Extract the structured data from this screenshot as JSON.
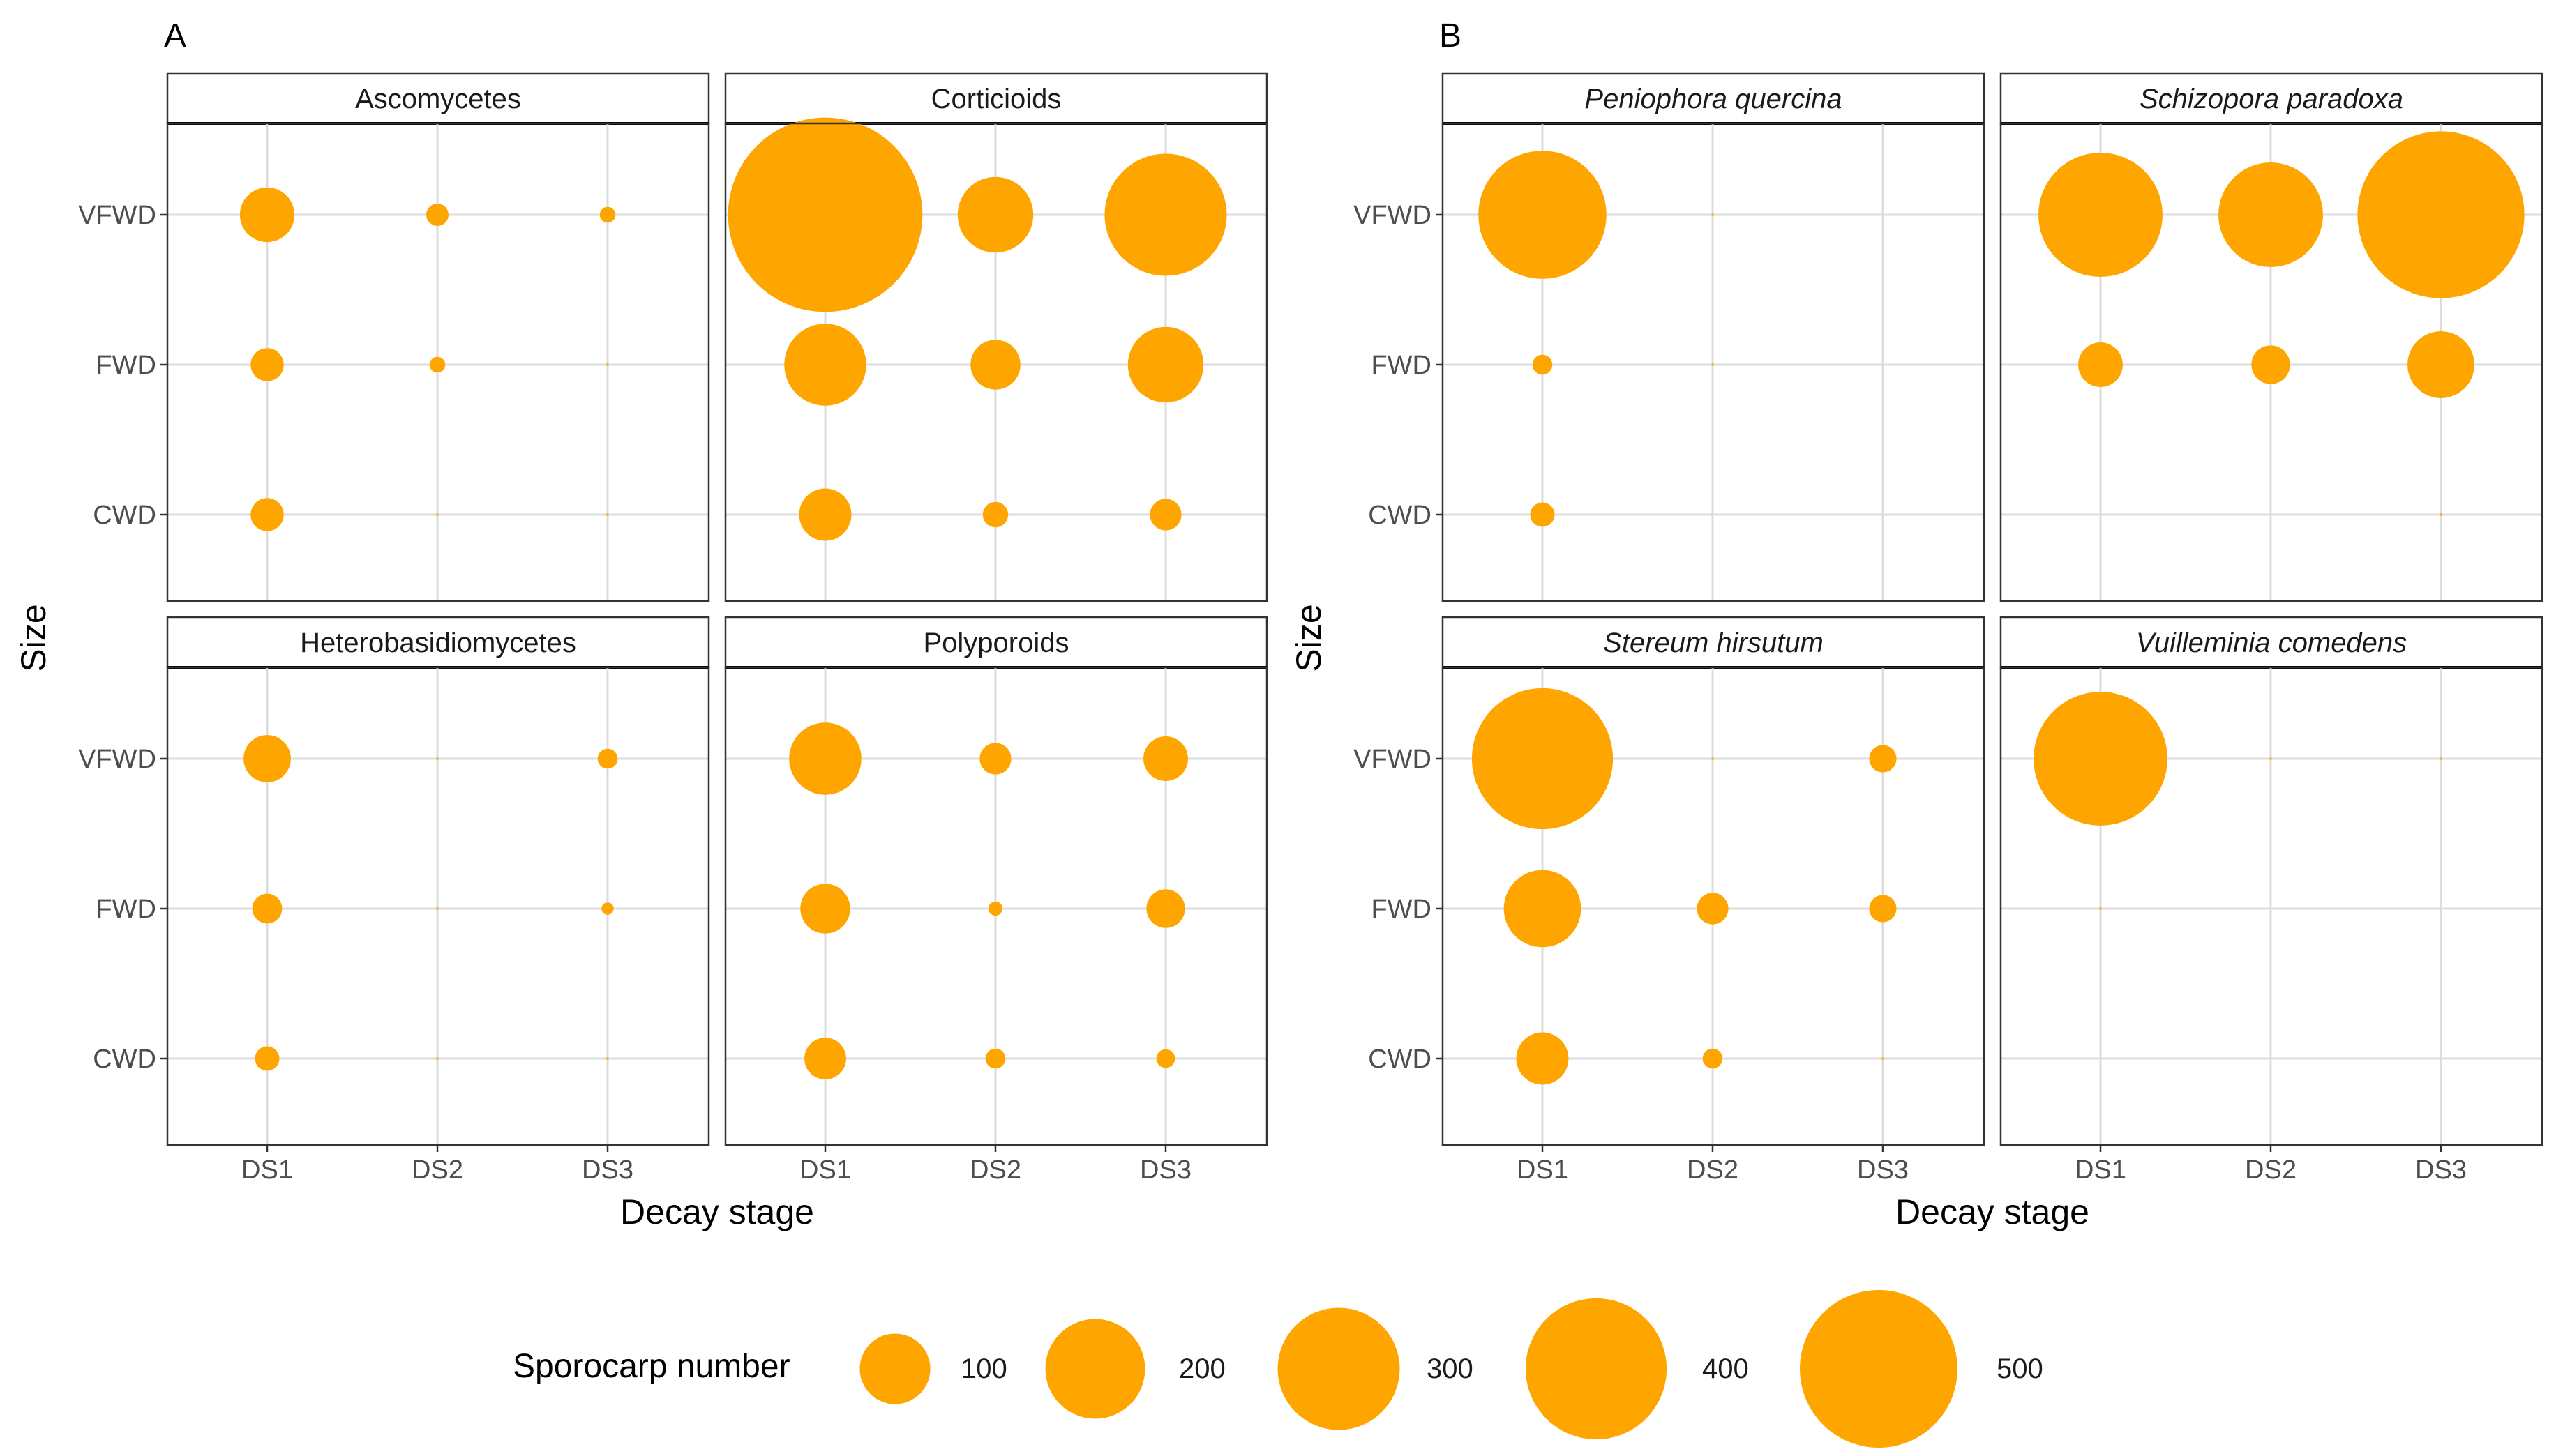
{
  "chart_data": [
    {
      "id": "A",
      "type": "scatter",
      "subtype": "facetted bubble chart",
      "panel_label": "A",
      "xlabel": "Decay stage",
      "ylabel": "Size",
      "x_categories": [
        "DS1",
        "DS2",
        "DS3"
      ],
      "y_categories": [
        "CWD",
        "FWD",
        "VFWD"
      ],
      "facets": [
        {
          "title": "Ascomycetes",
          "italic": false,
          "points": [
            {
              "x": "DS1",
              "y": "VFWD",
              "value": 60
            },
            {
              "x": "DS2",
              "y": "VFWD",
              "value": 10
            },
            {
              "x": "DS3",
              "y": "VFWD",
              "value": 5
            },
            {
              "x": "DS1",
              "y": "FWD",
              "value": 22
            },
            {
              "x": "DS2",
              "y": "FWD",
              "value": 5
            },
            {
              "x": "DS3",
              "y": "FWD",
              "value": 0.1
            },
            {
              "x": "DS1",
              "y": "CWD",
              "value": 22
            },
            {
              "x": "DS2",
              "y": "CWD",
              "value": 0.1
            },
            {
              "x": "DS3",
              "y": "CWD",
              "value": 0.1
            }
          ]
        },
        {
          "title": "Corticioids",
          "italic": false,
          "points": [
            {
              "x": "DS1",
              "y": "VFWD",
              "value": 760
            },
            {
              "x": "DS2",
              "y": "VFWD",
              "value": 115
            },
            {
              "x": "DS3",
              "y": "VFWD",
              "value": 300
            },
            {
              "x": "DS1",
              "y": "FWD",
              "value": 135
            },
            {
              "x": "DS2",
              "y": "FWD",
              "value": 50
            },
            {
              "x": "DS3",
              "y": "FWD",
              "value": 115
            },
            {
              "x": "DS1",
              "y": "CWD",
              "value": 55
            },
            {
              "x": "DS2",
              "y": "CWD",
              "value": 13
            },
            {
              "x": "DS3",
              "y": "CWD",
              "value": 20
            }
          ]
        },
        {
          "title": "Heterobasidiomycetes",
          "italic": false,
          "points": [
            {
              "x": "DS1",
              "y": "VFWD",
              "value": 45
            },
            {
              "x": "DS2",
              "y": "VFWD",
              "value": 0.1
            },
            {
              "x": "DS3",
              "y": "VFWD",
              "value": 8
            },
            {
              "x": "DS1",
              "y": "FWD",
              "value": 18
            },
            {
              "x": "DS2",
              "y": "FWD",
              "value": 0.1
            },
            {
              "x": "DS3",
              "y": "FWD",
              "value": 3
            },
            {
              "x": "DS1",
              "y": "CWD",
              "value": 12
            },
            {
              "x": "DS2",
              "y": "CWD",
              "value": 0.1
            },
            {
              "x": "DS3",
              "y": "CWD",
              "value": 0.1
            }
          ]
        },
        {
          "title": "Polyporoids",
          "italic": false,
          "points": [
            {
              "x": "DS1",
              "y": "VFWD",
              "value": 105
            },
            {
              "x": "DS2",
              "y": "VFWD",
              "value": 20
            },
            {
              "x": "DS3",
              "y": "VFWD",
              "value": 40
            },
            {
              "x": "DS1",
              "y": "FWD",
              "value": 50
            },
            {
              "x": "DS2",
              "y": "FWD",
              "value": 4
            },
            {
              "x": "DS3",
              "y": "FWD",
              "value": 30
            },
            {
              "x": "DS1",
              "y": "CWD",
              "value": 35
            },
            {
              "x": "DS2",
              "y": "CWD",
              "value": 8
            },
            {
              "x": "DS3",
              "y": "CWD",
              "value": 7
            }
          ]
        }
      ]
    },
    {
      "id": "B",
      "type": "scatter",
      "subtype": "facetted bubble chart",
      "panel_label": "B",
      "xlabel": "Decay stage",
      "ylabel": "Size",
      "x_categories": [
        "DS1",
        "DS2",
        "DS3"
      ],
      "y_categories": [
        "CWD",
        "FWD",
        "VFWD"
      ],
      "facets": [
        {
          "title": "Peniophora quercina",
          "italic": true,
          "points": [
            {
              "x": "DS1",
              "y": "VFWD",
              "value": 330
            },
            {
              "x": "DS2",
              "y": "VFWD",
              "value": 0.1
            },
            {
              "x": "DS3",
              "y": "VFWD",
              "value": 0
            },
            {
              "x": "DS1",
              "y": "FWD",
              "value": 8
            },
            {
              "x": "DS2",
              "y": "FWD",
              "value": 0.1
            },
            {
              "x": "DS3",
              "y": "FWD",
              "value": 0
            },
            {
              "x": "DS1",
              "y": "CWD",
              "value": 12
            },
            {
              "x": "DS2",
              "y": "CWD",
              "value": 0
            },
            {
              "x": "DS3",
              "y": "CWD",
              "value": 0
            }
          ]
        },
        {
          "title": "Schizopora paradoxa",
          "italic": true,
          "points": [
            {
              "x": "DS1",
              "y": "VFWD",
              "value": 310
            },
            {
              "x": "DS2",
              "y": "VFWD",
              "value": 220
            },
            {
              "x": "DS3",
              "y": "VFWD",
              "value": 560
            },
            {
              "x": "DS1",
              "y": "FWD",
              "value": 40
            },
            {
              "x": "DS2",
              "y": "FWD",
              "value": 30
            },
            {
              "x": "DS3",
              "y": "FWD",
              "value": 90
            },
            {
              "x": "DS1",
              "y": "CWD",
              "value": 0
            },
            {
              "x": "DS2",
              "y": "CWD",
              "value": 0
            },
            {
              "x": "DS3",
              "y": "CWD",
              "value": 0.1
            }
          ]
        },
        {
          "title": "Stereum hirsutum",
          "italic": true,
          "points": [
            {
              "x": "DS1",
              "y": "VFWD",
              "value": 400
            },
            {
              "x": "DS2",
              "y": "VFWD",
              "value": 0.1
            },
            {
              "x": "DS3",
              "y": "VFWD",
              "value": 15
            },
            {
              "x": "DS1",
              "y": "FWD",
              "value": 120
            },
            {
              "x": "DS2",
              "y": "FWD",
              "value": 20
            },
            {
              "x": "DS3",
              "y": "FWD",
              "value": 15
            },
            {
              "x": "DS1",
              "y": "CWD",
              "value": 55
            },
            {
              "x": "DS2",
              "y": "CWD",
              "value": 8
            },
            {
              "x": "DS3",
              "y": "CWD",
              "value": 0.1
            }
          ]
        },
        {
          "title": "Vuilleminia comedens",
          "italic": true,
          "points": [
            {
              "x": "DS1",
              "y": "VFWD",
              "value": 360
            },
            {
              "x": "DS2",
              "y": "VFWD",
              "value": 0.1
            },
            {
              "x": "DS3",
              "y": "VFWD",
              "value": 0.1
            },
            {
              "x": "DS1",
              "y": "FWD",
              "value": 0.1
            },
            {
              "x": "DS2",
              "y": "FWD",
              "value": 0
            },
            {
              "x": "DS3",
              "y": "FWD",
              "value": 0
            },
            {
              "x": "DS1",
              "y": "CWD",
              "value": 0
            },
            {
              "x": "DS2",
              "y": "CWD",
              "value": 0
            },
            {
              "x": "DS3",
              "y": "CWD",
              "value": 0
            }
          ]
        }
      ]
    }
  ],
  "legend": {
    "title": "Sporocarp number",
    "values": [
      100,
      200,
      300,
      400,
      500
    ],
    "labels": [
      "100",
      "200",
      "300",
      "400",
      "500"
    ]
  },
  "colors": {
    "point": "#FFA500",
    "grid": "#DCDCDC",
    "panel_border": "#333333",
    "strip_background": "#FFFFFF"
  },
  "scale": {
    "size_reference_value": 500,
    "note": "bubble area proportional to sporocarp number"
  }
}
